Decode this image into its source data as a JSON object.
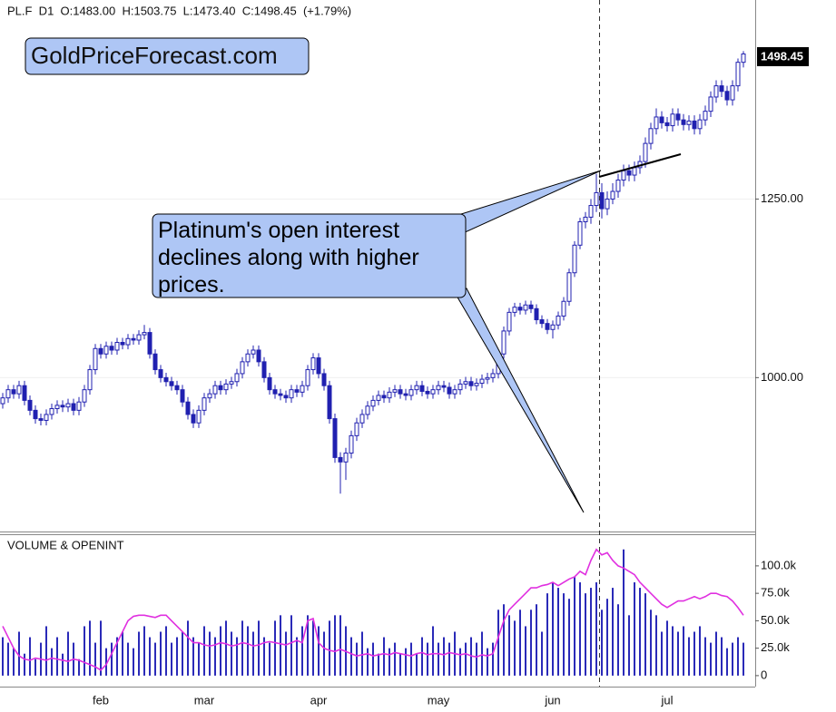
{
  "chart_data": [
    {
      "type": "candlestick",
      "title": "PL.F  D1  O:1483.00  H:1503.75  L:1473.40  C:1498.45  (+1.79%)",
      "watermark": "GoldPriceForecast.com",
      "annotation": "Platinum's open interest declines along with higher prices.",
      "color": "#2020b0",
      "log_scale": true,
      "grid": true,
      "ylim": [
        826,
        1603
      ],
      "yticks": [
        {
          "value": 1000,
          "label": "1000.00"
        },
        {
          "value": 1250,
          "label": "1250.00"
        }
      ],
      "last_label": "1498.45",
      "categories": [
        null,
        null,
        null,
        null,
        null,
        null,
        null,
        null,
        null,
        null,
        null,
        null,
        null,
        null,
        null,
        null,
        null,
        null,
        "feb",
        null,
        null,
        null,
        null,
        null,
        null,
        null,
        null,
        null,
        null,
        null,
        null,
        null,
        null,
        null,
        null,
        null,
        null,
        "mar",
        null,
        null,
        null,
        null,
        null,
        null,
        null,
        null,
        null,
        null,
        null,
        null,
        null,
        null,
        null,
        null,
        null,
        null,
        null,
        null,
        "apr",
        null,
        null,
        null,
        null,
        null,
        null,
        null,
        null,
        null,
        null,
        null,
        null,
        null,
        null,
        null,
        null,
        null,
        null,
        null,
        null,
        null,
        "may",
        null,
        null,
        null,
        null,
        null,
        null,
        null,
        null,
        null,
        null,
        null,
        null,
        null,
        null,
        null,
        null,
        null,
        null,
        null,
        null,
        "jun",
        null,
        null,
        null,
        null,
        null,
        null,
        null,
        null,
        null,
        null,
        null,
        null,
        null,
        null,
        null,
        null,
        null,
        null,
        null,
        null,
        "jul",
        null,
        null,
        null,
        null,
        null,
        null,
        null,
        null,
        null,
        null,
        null,
        null,
        null,
        null
      ],
      "open": [
        968,
        975,
        985,
        980,
        990,
        972,
        960,
        950,
        948,
        955,
        962,
        966,
        964,
        968,
        960,
        970,
        985,
        1010,
        1037,
        1030,
        1040,
        1035,
        1045,
        1042,
        1050,
        1048,
        1055,
        1058,
        1030,
        1010,
        1000,
        995,
        990,
        985,
        970,
        955,
        945,
        960,
        975,
        980,
        990,
        985,
        992,
        995,
        1005,
        1020,
        1030,
        1035,
        1020,
        1000,
        985,
        980,
        978,
        975,
        985,
        982,
        990,
        1010,
        1025,
        1005,
        990,
        950,
        905,
        900,
        910,
        930,
        945,
        955,
        965,
        972,
        978,
        975,
        982,
        985,
        980,
        978,
        985,
        990,
        983,
        980,
        985,
        990,
        988,
        980,
        985,
        992,
        995,
        990,
        993,
        998,
        1000,
        1005,
        1030,
        1060,
        1085,
        1092,
        1088,
        1095,
        1090,
        1075,
        1070,
        1062,
        1068,
        1080,
        1100,
        1140,
        1180,
        1215,
        1222,
        1240,
        1260,
        1235,
        1250,
        1262,
        1280,
        1295,
        1288,
        1300,
        1310,
        1340,
        1365,
        1385,
        1375,
        1370,
        1390,
        1380,
        1372,
        1378,
        1365,
        1380,
        1395,
        1420,
        1440,
        1430,
        1415,
        1440,
        1483
      ],
      "high": [
        981,
        991,
        991,
        996,
        996,
        978,
        966,
        956,
        961,
        968,
        972,
        972,
        974,
        974,
        976,
        991,
        1016,
        1043,
        1043,
        1046,
        1046,
        1051,
        1051,
        1056,
        1056,
        1061,
        1068,
        1064,
        1036,
        1016,
        1006,
        1001,
        996,
        991,
        976,
        961,
        966,
        981,
        986,
        996,
        996,
        998,
        1001,
        1011,
        1026,
        1036,
        1041,
        1041,
        1026,
        1006,
        991,
        986,
        984,
        991,
        991,
        996,
        1016,
        1031,
        1031,
        1011,
        996,
        956,
        911,
        916,
        936,
        951,
        961,
        971,
        978,
        984,
        984,
        988,
        991,
        991,
        986,
        991,
        996,
        996,
        989,
        991,
        996,
        996,
        994,
        991,
        998,
        1001,
        1001,
        999,
        1004,
        1006,
        1011,
        1036,
        1066,
        1091,
        1098,
        1098,
        1101,
        1101,
        1096,
        1081,
        1076,
        1074,
        1086,
        1106,
        1146,
        1186,
        1221,
        1230,
        1250,
        1290,
        1275,
        1262,
        1275,
        1290,
        1305,
        1305,
        1310,
        1320,
        1350,
        1375,
        1400,
        1395,
        1385,
        1400,
        1400,
        1390,
        1388,
        1388,
        1390,
        1405,
        1430,
        1450,
        1450,
        1440,
        1450,
        1490,
        1503.75
      ],
      "low": [
        962,
        969,
        974,
        974,
        966,
        954,
        944,
        942,
        942,
        949,
        956,
        958,
        958,
        954,
        954,
        964,
        979,
        1004,
        1024,
        1024,
        1029,
        1029,
        1036,
        1036,
        1042,
        1042,
        1049,
        1024,
        1004,
        994,
        989,
        984,
        979,
        964,
        949,
        939,
        939,
        954,
        969,
        974,
        979,
        979,
        986,
        989,
        999,
        1014,
        1024,
        1014,
        994,
        979,
        974,
        972,
        969,
        969,
        976,
        976,
        984,
        1004,
        999,
        984,
        944,
        899,
        865,
        880,
        904,
        924,
        939,
        949,
        959,
        966,
        969,
        969,
        976,
        974,
        972,
        972,
        979,
        977,
        974,
        974,
        979,
        982,
        974,
        974,
        979,
        986,
        984,
        984,
        987,
        992,
        994,
        999,
        1024,
        1054,
        1079,
        1082,
        1082,
        1084,
        1069,
        1064,
        1056,
        1050,
        1062,
        1074,
        1094,
        1134,
        1174,
        1205,
        1212,
        1230,
        1220,
        1225,
        1242,
        1252,
        1270,
        1278,
        1278,
        1290,
        1300,
        1330,
        1355,
        1365,
        1360,
        1360,
        1370,
        1362,
        1362,
        1355,
        1355,
        1370,
        1385,
        1410,
        1420,
        1405,
        1405,
        1430,
        1473.4
      ],
      "close": [
        975,
        985,
        980,
        990,
        972,
        960,
        950,
        948,
        955,
        962,
        966,
        964,
        968,
        960,
        970,
        985,
        1010,
        1037,
        1030,
        1040,
        1035,
        1045,
        1042,
        1050,
        1048,
        1055,
        1058,
        1030,
        1010,
        1000,
        995,
        990,
        985,
        970,
        955,
        945,
        960,
        975,
        980,
        990,
        985,
        992,
        995,
        1005,
        1020,
        1030,
        1035,
        1020,
        1000,
        985,
        980,
        978,
        975,
        985,
        982,
        990,
        1010,
        1025,
        1005,
        990,
        950,
        905,
        900,
        910,
        930,
        945,
        955,
        965,
        972,
        978,
        975,
        982,
        985,
        980,
        978,
        985,
        990,
        983,
        980,
        985,
        990,
        988,
        980,
        985,
        992,
        995,
        990,
        993,
        998,
        1000,
        1005,
        1030,
        1060,
        1085,
        1092,
        1088,
        1095,
        1090,
        1075,
        1070,
        1062,
        1068,
        1080,
        1100,
        1140,
        1180,
        1215,
        1222,
        1240,
        1260,
        1235,
        1250,
        1262,
        1280,
        1295,
        1288,
        1300,
        1310,
        1340,
        1365,
        1385,
        1375,
        1370,
        1390,
        1380,
        1372,
        1378,
        1365,
        1380,
        1395,
        1420,
        1440,
        1430,
        1415,
        1440,
        1483,
        1498.45
      ]
    },
    {
      "type": "volume",
      "title": "VOLUME & OPENINT",
      "ylim": [
        -10000,
        128000
      ],
      "yticks": [
        0,
        {
          "value": 25000,
          "label": "25.0k"
        },
        {
          "value": 50000,
          "label": "50.0k"
        },
        {
          "value": 75000,
          "label": "75.0k"
        },
        {
          "value": 100000,
          "label": "100.0k"
        }
      ],
      "series": [
        {
          "kind": "bar",
          "color": "#2a2ab8",
          "values": [
            35000,
            30000,
            25000,
            40000,
            20000,
            35000,
            15000,
            30000,
            45000,
            25000,
            35000,
            20000,
            40000,
            30000,
            15000,
            45000,
            50000,
            30000,
            50000,
            25000,
            30000,
            35000,
            40000,
            30000,
            25000,
            40000,
            45000,
            35000,
            30000,
            40000,
            45000,
            30000,
            35000,
            40000,
            50000,
            35000,
            30000,
            45000,
            40000,
            35000,
            45000,
            50000,
            40000,
            35000,
            50000,
            45000,
            40000,
            50000,
            35000,
            30000,
            50000,
            55000,
            40000,
            55000,
            35000,
            45000,
            55000,
            50000,
            45000,
            40000,
            50000,
            55000,
            55000,
            45000,
            35000,
            30000,
            40000,
            25000,
            30000,
            20000,
            35000,
            25000,
            30000,
            20000,
            25000,
            30000,
            20000,
            35000,
            30000,
            45000,
            30000,
            35000,
            30000,
            40000,
            25000,
            30000,
            35000,
            30000,
            40000,
            25000,
            30000,
            60000,
            65000,
            55000,
            50000,
            60000,
            45000,
            60000,
            65000,
            40000,
            75000,
            85000,
            80000,
            75000,
            70000,
            90000,
            85000,
            75000,
            80000,
            85000,
            60000,
            70000,
            80000,
            65000,
            115000,
            55000,
            85000,
            80000,
            75000,
            60000,
            55000,
            40000,
            50000,
            45000,
            40000,
            45000,
            35000,
            40000,
            45000,
            35000,
            30000,
            40000,
            35000,
            25000,
            30000,
            35000,
            30000
          ]
        },
        {
          "kind": "line",
          "color": "#e030e0",
          "values": [
            45000,
            35000,
            25000,
            18000,
            15000,
            14000,
            16000,
            15000,
            14000,
            16000,
            15000,
            14000,
            13000,
            15000,
            14000,
            12000,
            10000,
            8000,
            5000,
            10000,
            20000,
            30000,
            40000,
            50000,
            54000,
            55000,
            55000,
            54000,
            53000,
            55000,
            55000,
            50000,
            45000,
            40000,
            35000,
            30000,
            30000,
            28000,
            27000,
            28000,
            30000,
            29000,
            27000,
            28000,
            30000,
            29000,
            27000,
            28000,
            30000,
            31000,
            30000,
            29000,
            28000,
            30000,
            32000,
            30000,
            50000,
            52000,
            30000,
            25000,
            23000,
            22000,
            24000,
            22000,
            20000,
            18000,
            19000,
            20000,
            18000,
            19000,
            20000,
            19000,
            21000,
            20000,
            19000,
            18000,
            20000,
            21000,
            19000,
            20000,
            20000,
            19000,
            21000,
            20000,
            19000,
            20000,
            18000,
            17000,
            19000,
            18000,
            20000,
            35000,
            50000,
            60000,
            65000,
            70000,
            75000,
            80000,
            80000,
            82000,
            83000,
            85000,
            82000,
            85000,
            88000,
            90000,
            95000,
            92000,
            105000,
            115000,
            110000,
            112000,
            105000,
            100000,
            98000,
            95000,
            92000,
            85000,
            80000,
            75000,
            70000,
            65000,
            62000,
            65000,
            68000,
            68000,
            70000,
            72000,
            70000,
            72000,
            75000,
            75000,
            73000,
            72000,
            68000,
            62000,
            55000
          ]
        }
      ]
    }
  ]
}
